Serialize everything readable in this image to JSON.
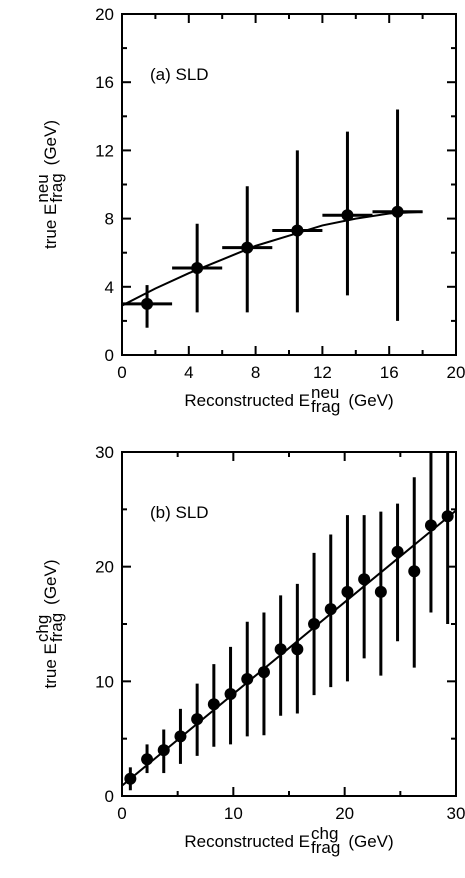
{
  "chart_data": [
    {
      "type": "scatter",
      "color": "#000000",
      "annotation": "(a)  SLD",
      "xlabel": {
        "main": "Reconstructed E",
        "sup": "neu",
        "sub": "frag",
        "unit": "(GeV)"
      },
      "ylabel": {
        "main": "true E",
        "sup": "neu",
        "sub": "frag",
        "unit": "(GeV)"
      },
      "xlim": [
        0,
        20
      ],
      "ylim": [
        0,
        20
      ],
      "xticks": [
        0,
        4,
        8,
        12,
        16,
        20
      ],
      "yticks": [
        0,
        4,
        8,
        12,
        16,
        20
      ],
      "xticks_minor": [
        2,
        6,
        10,
        14,
        18
      ],
      "yticks_minor": [
        2,
        6,
        10,
        14,
        18
      ],
      "points": {
        "x": [
          1.5,
          4.5,
          7.5,
          10.5,
          13.5,
          16.5
        ],
        "x_err": [
          1.5,
          1.5,
          1.5,
          1.5,
          1.5,
          1.5
        ],
        "values": [
          3.0,
          5.1,
          6.3,
          7.3,
          8.2,
          8.4
        ],
        "low": [
          1.6,
          2.5,
          2.5,
          2.5,
          3.5,
          2.0
        ],
        "high": [
          4.1,
          7.7,
          9.9,
          12.0,
          13.1,
          14.4
        ]
      },
      "fit": {
        "x": [
          0,
          2,
          4,
          6,
          8,
          10,
          12,
          14,
          16,
          18
        ],
        "values": [
          2.9,
          3.9,
          4.8,
          5.6,
          6.4,
          7.0,
          7.6,
          8.0,
          8.3,
          8.4
        ]
      }
    },
    {
      "type": "scatter",
      "color": "#000000",
      "annotation": "(b)  SLD",
      "xlabel": {
        "main": "Reconstructed E",
        "sup": "chg",
        "sub": "frag",
        "unit": "(GeV)"
      },
      "ylabel": {
        "main": "true E",
        "sup": "chg",
        "sub": "frag",
        "unit": "(GeV)"
      },
      "xlim": [
        0,
        30
      ],
      "ylim": [
        0,
        30
      ],
      "xticks": [
        0,
        10,
        20,
        30
      ],
      "yticks": [
        0,
        10,
        20,
        30
      ],
      "xticks_minor": [
        5,
        15,
        25
      ],
      "yticks_minor": [
        5,
        15,
        25
      ],
      "points": {
        "x": [
          0.75,
          2.25,
          3.75,
          5.25,
          6.75,
          8.25,
          9.75,
          11.25,
          12.75,
          14.25,
          15.75,
          17.25,
          18.75,
          20.25,
          21.75,
          23.25,
          24.75,
          26.25,
          27.75,
          29.25
        ],
        "values": [
          1.5,
          3.2,
          4.0,
          5.2,
          6.7,
          8.0,
          8.9,
          10.2,
          10.8,
          12.8,
          12.8,
          15.0,
          16.3,
          17.8,
          18.9,
          17.8,
          21.3,
          19.6,
          23.6,
          24.4
        ],
        "low": [
          0.5,
          2.0,
          2.0,
          2.8,
          3.5,
          4.3,
          4.5,
          5.2,
          5.3,
          7.0,
          7.2,
          8.8,
          9.5,
          10.0,
          12.0,
          10.5,
          13.5,
          11.2,
          16.0,
          15.0
        ],
        "high": [
          2.5,
          4.5,
          5.8,
          7.6,
          9.8,
          11.5,
          13.0,
          15.2,
          16.0,
          17.5,
          18.5,
          21.2,
          22.8,
          24.5,
          24.5,
          24.8,
          25.5,
          27.8,
          30,
          30
        ]
      },
      "fit": {
        "x": [
          0,
          30
        ],
        "values": [
          0.9,
          24.9
        ]
      }
    }
  ]
}
